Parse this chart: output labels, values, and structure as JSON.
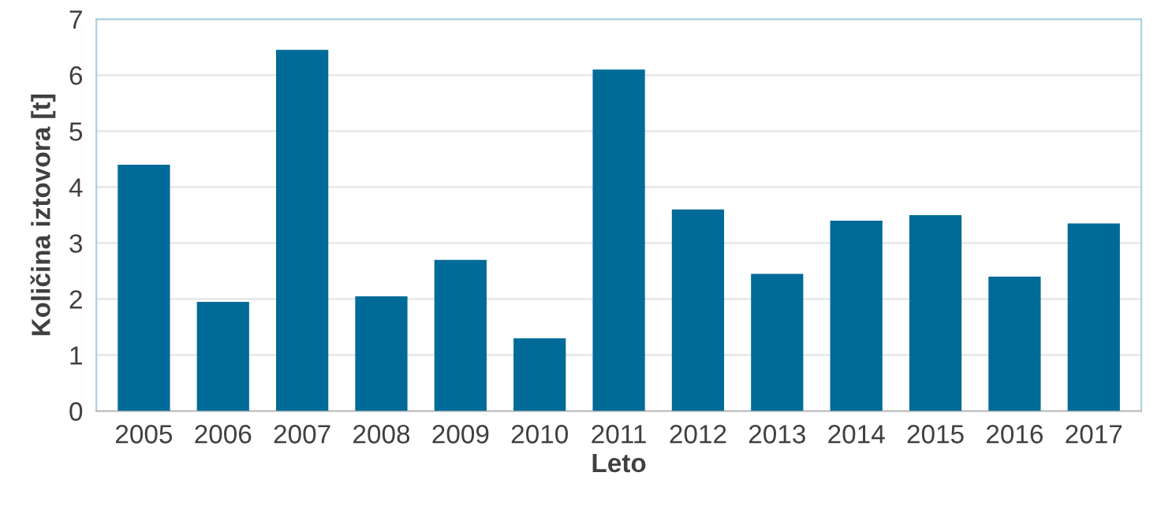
{
  "chart_data": {
    "type": "bar",
    "xlabel": "Leto",
    "ylabel": "Količina iztovora [t]",
    "categories": [
      "2005",
      "2006",
      "2007",
      "2008",
      "2009",
      "2010",
      "2011",
      "2012",
      "2013",
      "2014",
      "2015",
      "2016",
      "2017"
    ],
    "values": [
      4.4,
      1.95,
      6.45,
      2.05,
      2.7,
      1.3,
      6.1,
      3.6,
      2.45,
      3.4,
      3.5,
      2.4,
      3.35
    ],
    "color": "#006b98",
    "ylim": [
      0,
      7
    ],
    "yticks": [
      0,
      1,
      2,
      3,
      4,
      5,
      6,
      7
    ],
    "grid": "y"
  }
}
